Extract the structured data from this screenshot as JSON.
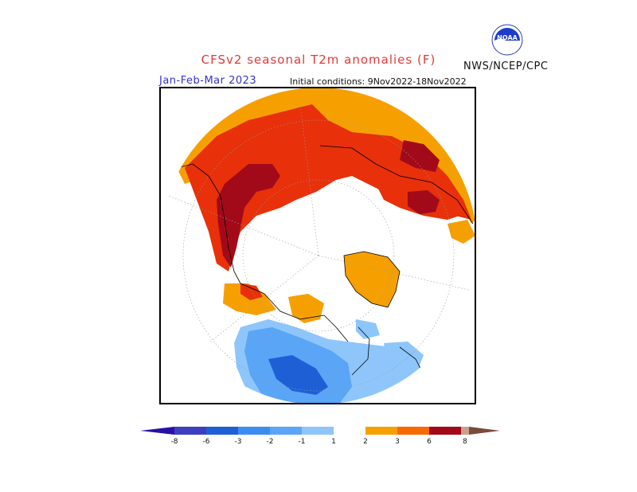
{
  "header": {
    "title": "CFSv2 seasonal T2m anomalies (F)",
    "organization": "NWS/NCEP/CPC",
    "period": "Jan-Feb-Mar 2023",
    "initial_conditions": "Initial conditions: 9Nov2022-18Nov2022"
  },
  "logo": {
    "icon": "noaa-logo-icon",
    "text": "NOAA"
  },
  "colors": {
    "deep_blue": "#3d3fbf",
    "blue_m6": "#1f5fd6",
    "blue_m3": "#3b8ef0",
    "blue_m2": "#5aa5f5",
    "blue_m1": "#8ec6fb",
    "orange_1": "#f5a000",
    "orange_2": "#f86a00",
    "red_3": "#e8300a",
    "dark_red": "#a20a1a",
    "pink_6": "#c8a090",
    "brown_8": "#7a4a3a",
    "title_red": "#e03a3a",
    "period_blue": "#3333cc"
  },
  "colorbar": {
    "labels": [
      "-8",
      "-6",
      "-3",
      "-2",
      "-1",
      "1",
      "2",
      "3",
      "6",
      "8"
    ]
  }
}
